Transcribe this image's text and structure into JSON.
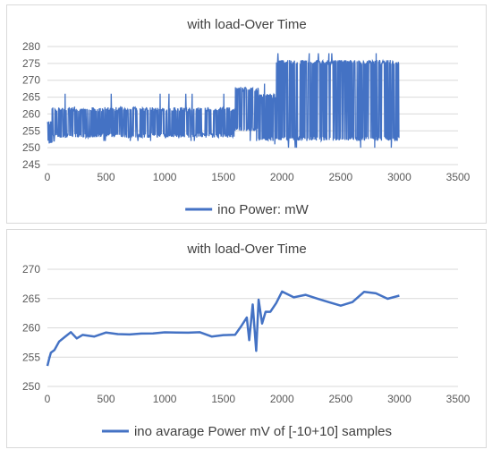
{
  "chart_data": [
    {
      "type": "line",
      "title": "with load-Over Time",
      "xlabel": "",
      "ylabel": "",
      "xlim": [
        0,
        3500
      ],
      "ylim": [
        245,
        280
      ],
      "x_ticks": [
        "0",
        "500",
        "1000",
        "1500",
        "2000",
        "2500",
        "3000",
        "3500"
      ],
      "y_ticks": [
        "245",
        "250",
        "255",
        "260",
        "265",
        "270",
        "275",
        "280"
      ],
      "grid": true,
      "legend_position": "bottom",
      "series": [
        {
          "name": "ino Power: mW",
          "color": "#4472c4",
          "segments": [
            {
              "x_start": 0,
              "x_end": 40,
              "low": 251,
              "high": 258,
              "spikes": [
                250,
                259
              ]
            },
            {
              "x_start": 40,
              "x_end": 1600,
              "low": 253,
              "high": 262,
              "spikes": [
                252,
                266
              ]
            },
            {
              "x_start": 1600,
              "x_end": 1800,
              "low": 255,
              "high": 268,
              "spikes": [
                252,
                271
              ]
            },
            {
              "x_start": 1800,
              "x_end": 1950,
              "low": 252,
              "high": 266,
              "spikes": [
                251,
                269
              ]
            },
            {
              "x_start": 1950,
              "x_end": 3000,
              "low": 252,
              "high": 276,
              "spikes": [
                250,
                278
              ]
            }
          ]
        }
      ]
    },
    {
      "type": "line",
      "title": "with load-Over Time",
      "xlabel": "",
      "ylabel": "",
      "xlim": [
        0,
        3500
      ],
      "ylim": [
        250,
        270
      ],
      "x_ticks": [
        "0",
        "500",
        "1000",
        "1500",
        "2000",
        "2500",
        "3000",
        "3500"
      ],
      "y_ticks": [
        "250",
        "255",
        "260",
        "265",
        "270"
      ],
      "grid": true,
      "legend_position": "bottom",
      "series": [
        {
          "name": "ino avarage Power mV of [-10+10] samples",
          "color": "#4472c4",
          "points": [
            [
              0,
              253.5
            ],
            [
              15,
              255
            ],
            [
              30,
              255.5
            ],
            [
              60,
              256.5
            ],
            [
              100,
              257.5
            ],
            [
              150,
              258.5
            ],
            [
              200,
              259
            ],
            [
              250,
              258.5
            ],
            [
              300,
              258.7
            ],
            [
              400,
              258.8
            ],
            [
              500,
              259
            ],
            [
              600,
              259.2
            ],
            [
              700,
              259.1
            ],
            [
              800,
              259
            ],
            [
              900,
              259.1
            ],
            [
              1000,
              259
            ],
            [
              1100,
              259.2
            ],
            [
              1200,
              259.3
            ],
            [
              1300,
              259
            ],
            [
              1400,
              258.8
            ],
            [
              1500,
              258.9
            ],
            [
              1600,
              259
            ],
            [
              1650,
              260
            ],
            [
              1700,
              262
            ],
            [
              1720,
              258
            ],
            [
              1750,
              264
            ],
            [
              1780,
              256
            ],
            [
              1800,
              265
            ],
            [
              1830,
              261
            ],
            [
              1860,
              262.5
            ],
            [
              1900,
              263
            ],
            [
              1950,
              264
            ],
            [
              2000,
              266.5
            ],
            [
              2100,
              266
            ],
            [
              2200,
              266.5
            ],
            [
              2300,
              264.5
            ],
            [
              2400,
              265
            ],
            [
              2500,
              264.5
            ],
            [
              2600,
              265
            ],
            [
              2700,
              265.5
            ],
            [
              2800,
              265
            ],
            [
              2900,
              265.5
            ],
            [
              3000,
              265.5
            ]
          ]
        }
      ]
    }
  ]
}
